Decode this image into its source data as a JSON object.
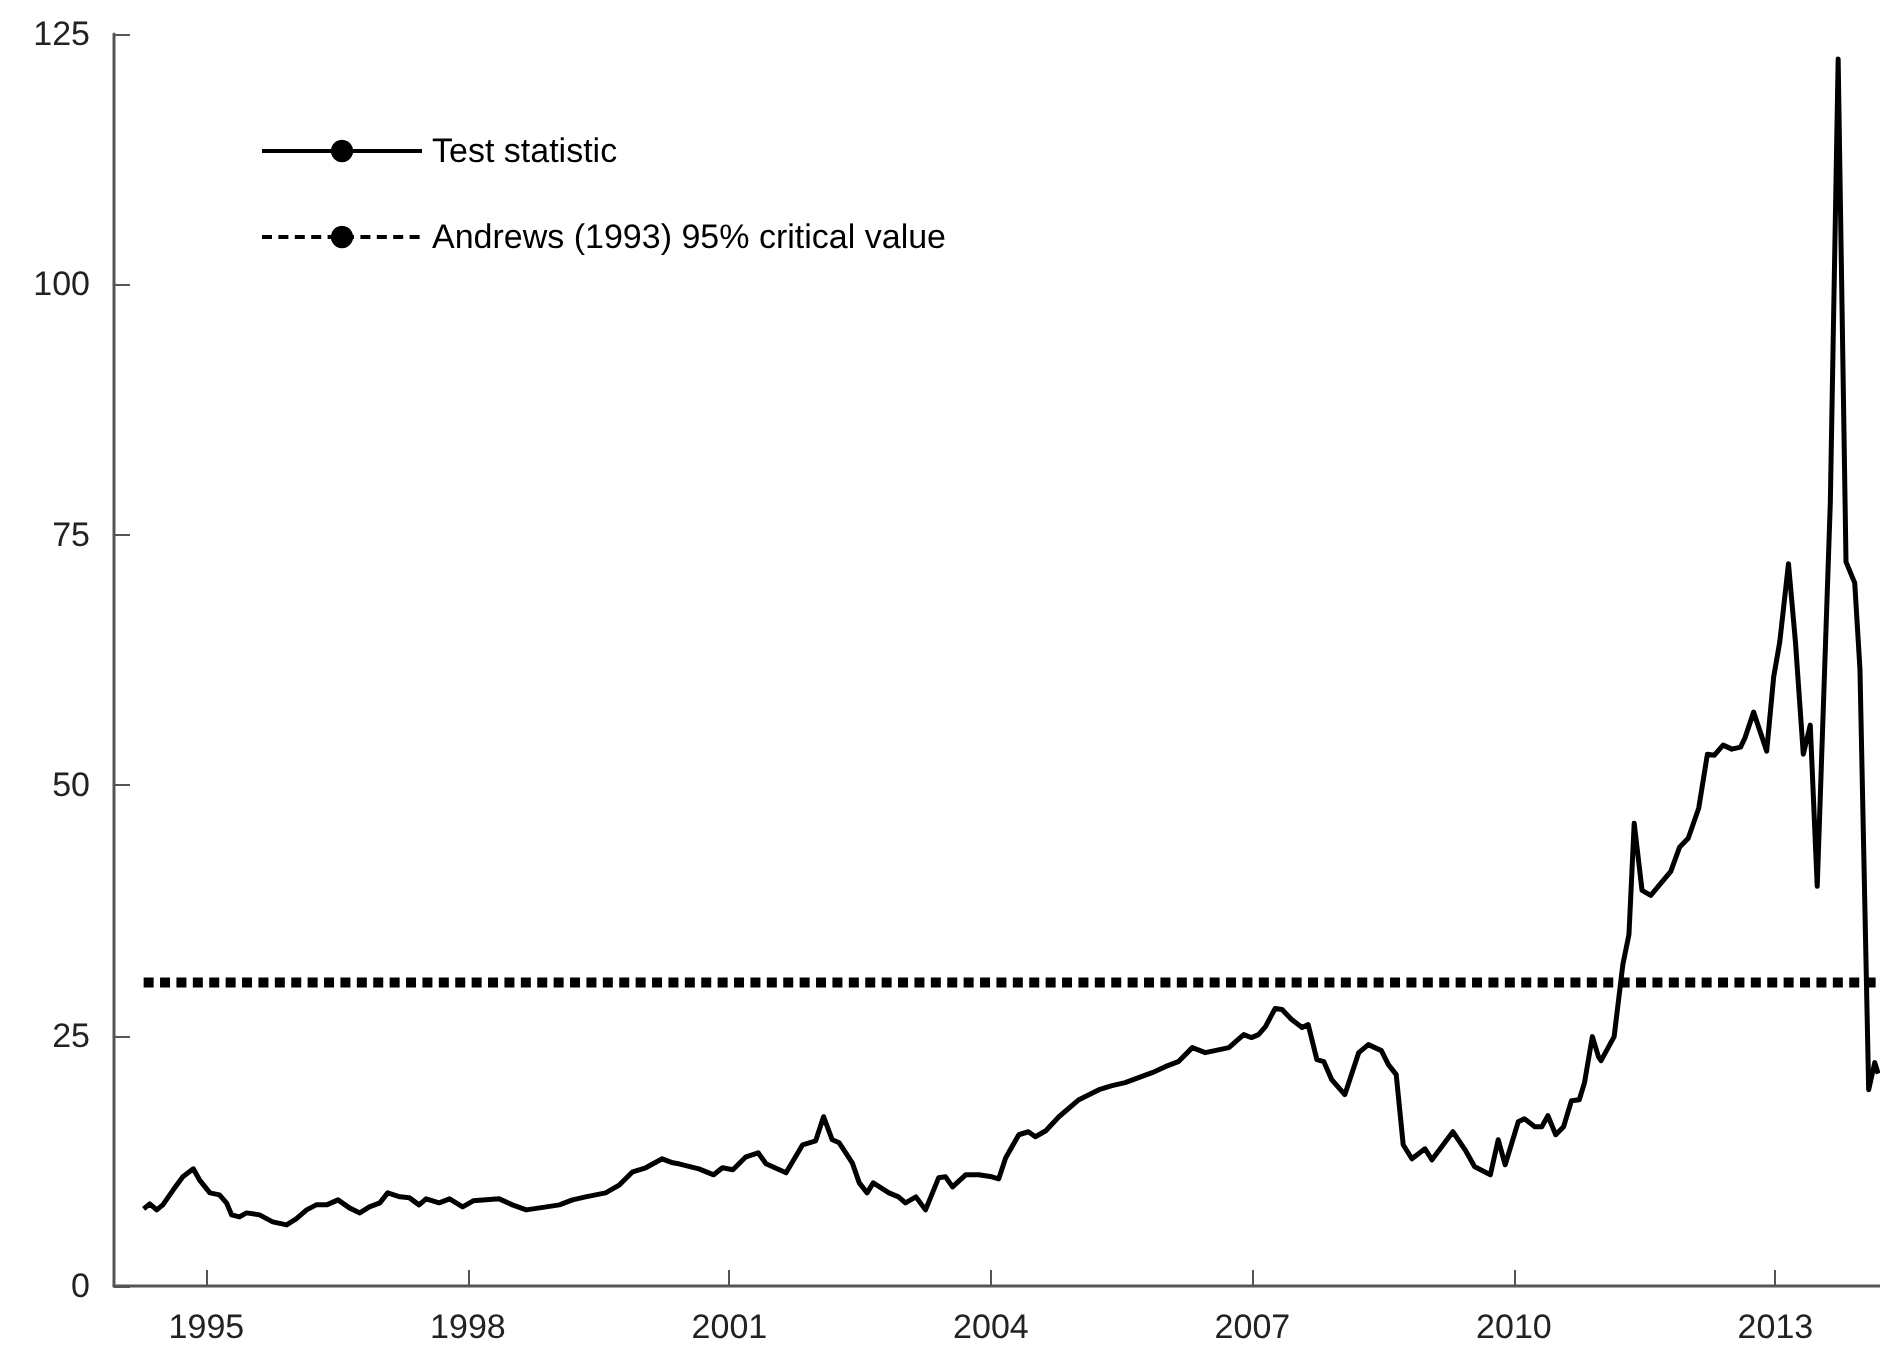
{
  "chart_data": {
    "type": "line",
    "legend": "top left",
    "grid": false,
    "marker": "none",
    "xlim": [
      1993.94,
      2014.2
    ],
    "xticks": [
      1995,
      1998,
      2001,
      2004,
      2007,
      2010,
      2013
    ],
    "ylim": [
      0,
      125
    ],
    "yticks": [
      0,
      25,
      50,
      75,
      100,
      125
    ],
    "series": [
      {
        "name": "Test statistic",
        "color": "#000000",
        "line_style": "solid",
        "x": [
          1994.28,
          1994.35,
          1994.43,
          1994.5,
          1994.62,
          1994.73,
          1994.85,
          1994.92,
          1995.04,
          1995.15,
          1995.23,
          1995.29,
          1995.38,
          1995.46,
          1995.61,
          1995.76,
          1995.92,
          1996.03,
          1996.15,
          1996.26,
          1996.38,
          1996.51,
          1996.64,
          1996.76,
          1996.87,
          1996.99,
          1997.08,
          1997.22,
          1997.33,
          1997.44,
          1997.52,
          1997.67,
          1997.79,
          1997.94,
          1998.06,
          1998.36,
          1998.51,
          1998.67,
          1998.9,
          1999.05,
          1999.2,
          1999.35,
          1999.58,
          1999.74,
          1999.89,
          2000.04,
          2000.23,
          2000.35,
          2000.42,
          2000.65,
          2000.82,
          2000.92,
          2001.04,
          2001.19,
          2001.33,
          2001.42,
          2001.65,
          2001.84,
          2001.99,
          2002.08,
          2002.18,
          2002.26,
          2002.41,
          2002.49,
          2002.58,
          2002.65,
          2002.83,
          2002.94,
          2003.02,
          2003.14,
          2003.25,
          2003.4,
          2003.48,
          2003.56,
          2003.71,
          2003.86,
          2004.01,
          2004.09,
          2004.17,
          2004.32,
          2004.43,
          2004.51,
          2004.63,
          2004.78,
          2005.01,
          2005.24,
          2005.39,
          2005.54,
          2005.85,
          2006.0,
          2006.15,
          2006.31,
          2006.46,
          2006.73,
          2006.9,
          2006.99,
          2007.07,
          2007.15,
          2007.26,
          2007.34,
          2007.45,
          2007.57,
          2007.64,
          2007.74,
          2007.82,
          2007.91,
          2008.06,
          2008.22,
          2008.33,
          2008.48,
          2008.56,
          2008.65,
          2008.73,
          2008.83,
          2008.98,
          2009.06,
          2009.3,
          2009.44,
          2009.55,
          2009.73,
          2009.82,
          2009.9,
          2010.05,
          2010.12,
          2010.24,
          2010.32,
          2010.39,
          2010.48,
          2010.57,
          2010.66,
          2010.75,
          2010.81,
          2010.9,
          2010.97,
          2011.0,
          2011.15,
          2011.25,
          2011.32,
          2011.38,
          2011.47,
          2011.57,
          2011.8,
          2011.9,
          2012.0,
          2012.12,
          2012.22,
          2012.3,
          2012.4,
          2012.5,
          2012.6,
          2012.65,
          2012.75,
          2012.9,
          2012.98,
          2013.05,
          2013.15,
          2013.23,
          2013.32,
          2013.4,
          2013.48,
          2013.63,
          2013.72,
          2013.81,
          2013.91,
          2013.97,
          2014.07,
          2014.14,
          2014.18
        ],
        "values": [
          7.7,
          8.2,
          7.6,
          8.1,
          9.6,
          10.9,
          11.7,
          10.6,
          9.3,
          9.1,
          8.3,
          7.1,
          6.9,
          7.3,
          7.1,
          6.4,
          6.1,
          6.7,
          7.6,
          8.1,
          8.1,
          8.6,
          7.8,
          7.3,
          7.9,
          8.3,
          9.3,
          8.9,
          8.8,
          8.1,
          8.7,
          8.3,
          8.7,
          7.9,
          8.5,
          8.7,
          8.1,
          7.6,
          7.9,
          8.1,
          8.6,
          8.9,
          9.3,
          10.1,
          11.4,
          11.8,
          12.7,
          12.3,
          12.2,
          11.7,
          11.1,
          11.8,
          11.6,
          12.9,
          13.3,
          12.2,
          11.3,
          14.1,
          14.5,
          16.9,
          14.6,
          14.3,
          12.3,
          10.3,
          9.3,
          10.3,
          9.3,
          8.9,
          8.3,
          8.9,
          7.6,
          10.8,
          10.9,
          9.9,
          11.1,
          11.1,
          10.9,
          10.7,
          12.8,
          15.1,
          15.4,
          14.9,
          15.5,
          16.9,
          18.6,
          19.6,
          20.0,
          20.3,
          21.3,
          21.9,
          22.4,
          23.8,
          23.3,
          23.8,
          25.1,
          24.8,
          25.1,
          25.9,
          27.7,
          27.6,
          26.6,
          25.8,
          26.1,
          22.6,
          22.4,
          20.6,
          19.1,
          23.3,
          24.1,
          23.5,
          22.1,
          21.1,
          14.1,
          12.7,
          13.7,
          12.6,
          15.4,
          13.6,
          11.9,
          11.1,
          14.6,
          12.1,
          16.4,
          16.7,
          15.9,
          15.9,
          17.0,
          15.1,
          15.9,
          18.5,
          18.6,
          20.3,
          24.9,
          22.9,
          22.5,
          24.9,
          32.1,
          35.1,
          46.2,
          39.5,
          39.0,
          41.4,
          43.8,
          44.7,
          47.7,
          53.1,
          53.0,
          54.0,
          53.6,
          53.8,
          54.7,
          57.3,
          53.4,
          60.8,
          64.3,
          72.1,
          64.3,
          53.1,
          56.0,
          39.9,
          78.2,
          122.5,
          72.3,
          70.2,
          61.6,
          19.6,
          22.3,
          21.2
        ]
      },
      {
        "name": "Andrews (1993) 95% critical value",
        "color": "#000000",
        "line_style": "dashed",
        "x": [
          1994.28,
          2014.18
        ],
        "values": [
          30.3,
          30.3
        ]
      }
    ]
  }
}
